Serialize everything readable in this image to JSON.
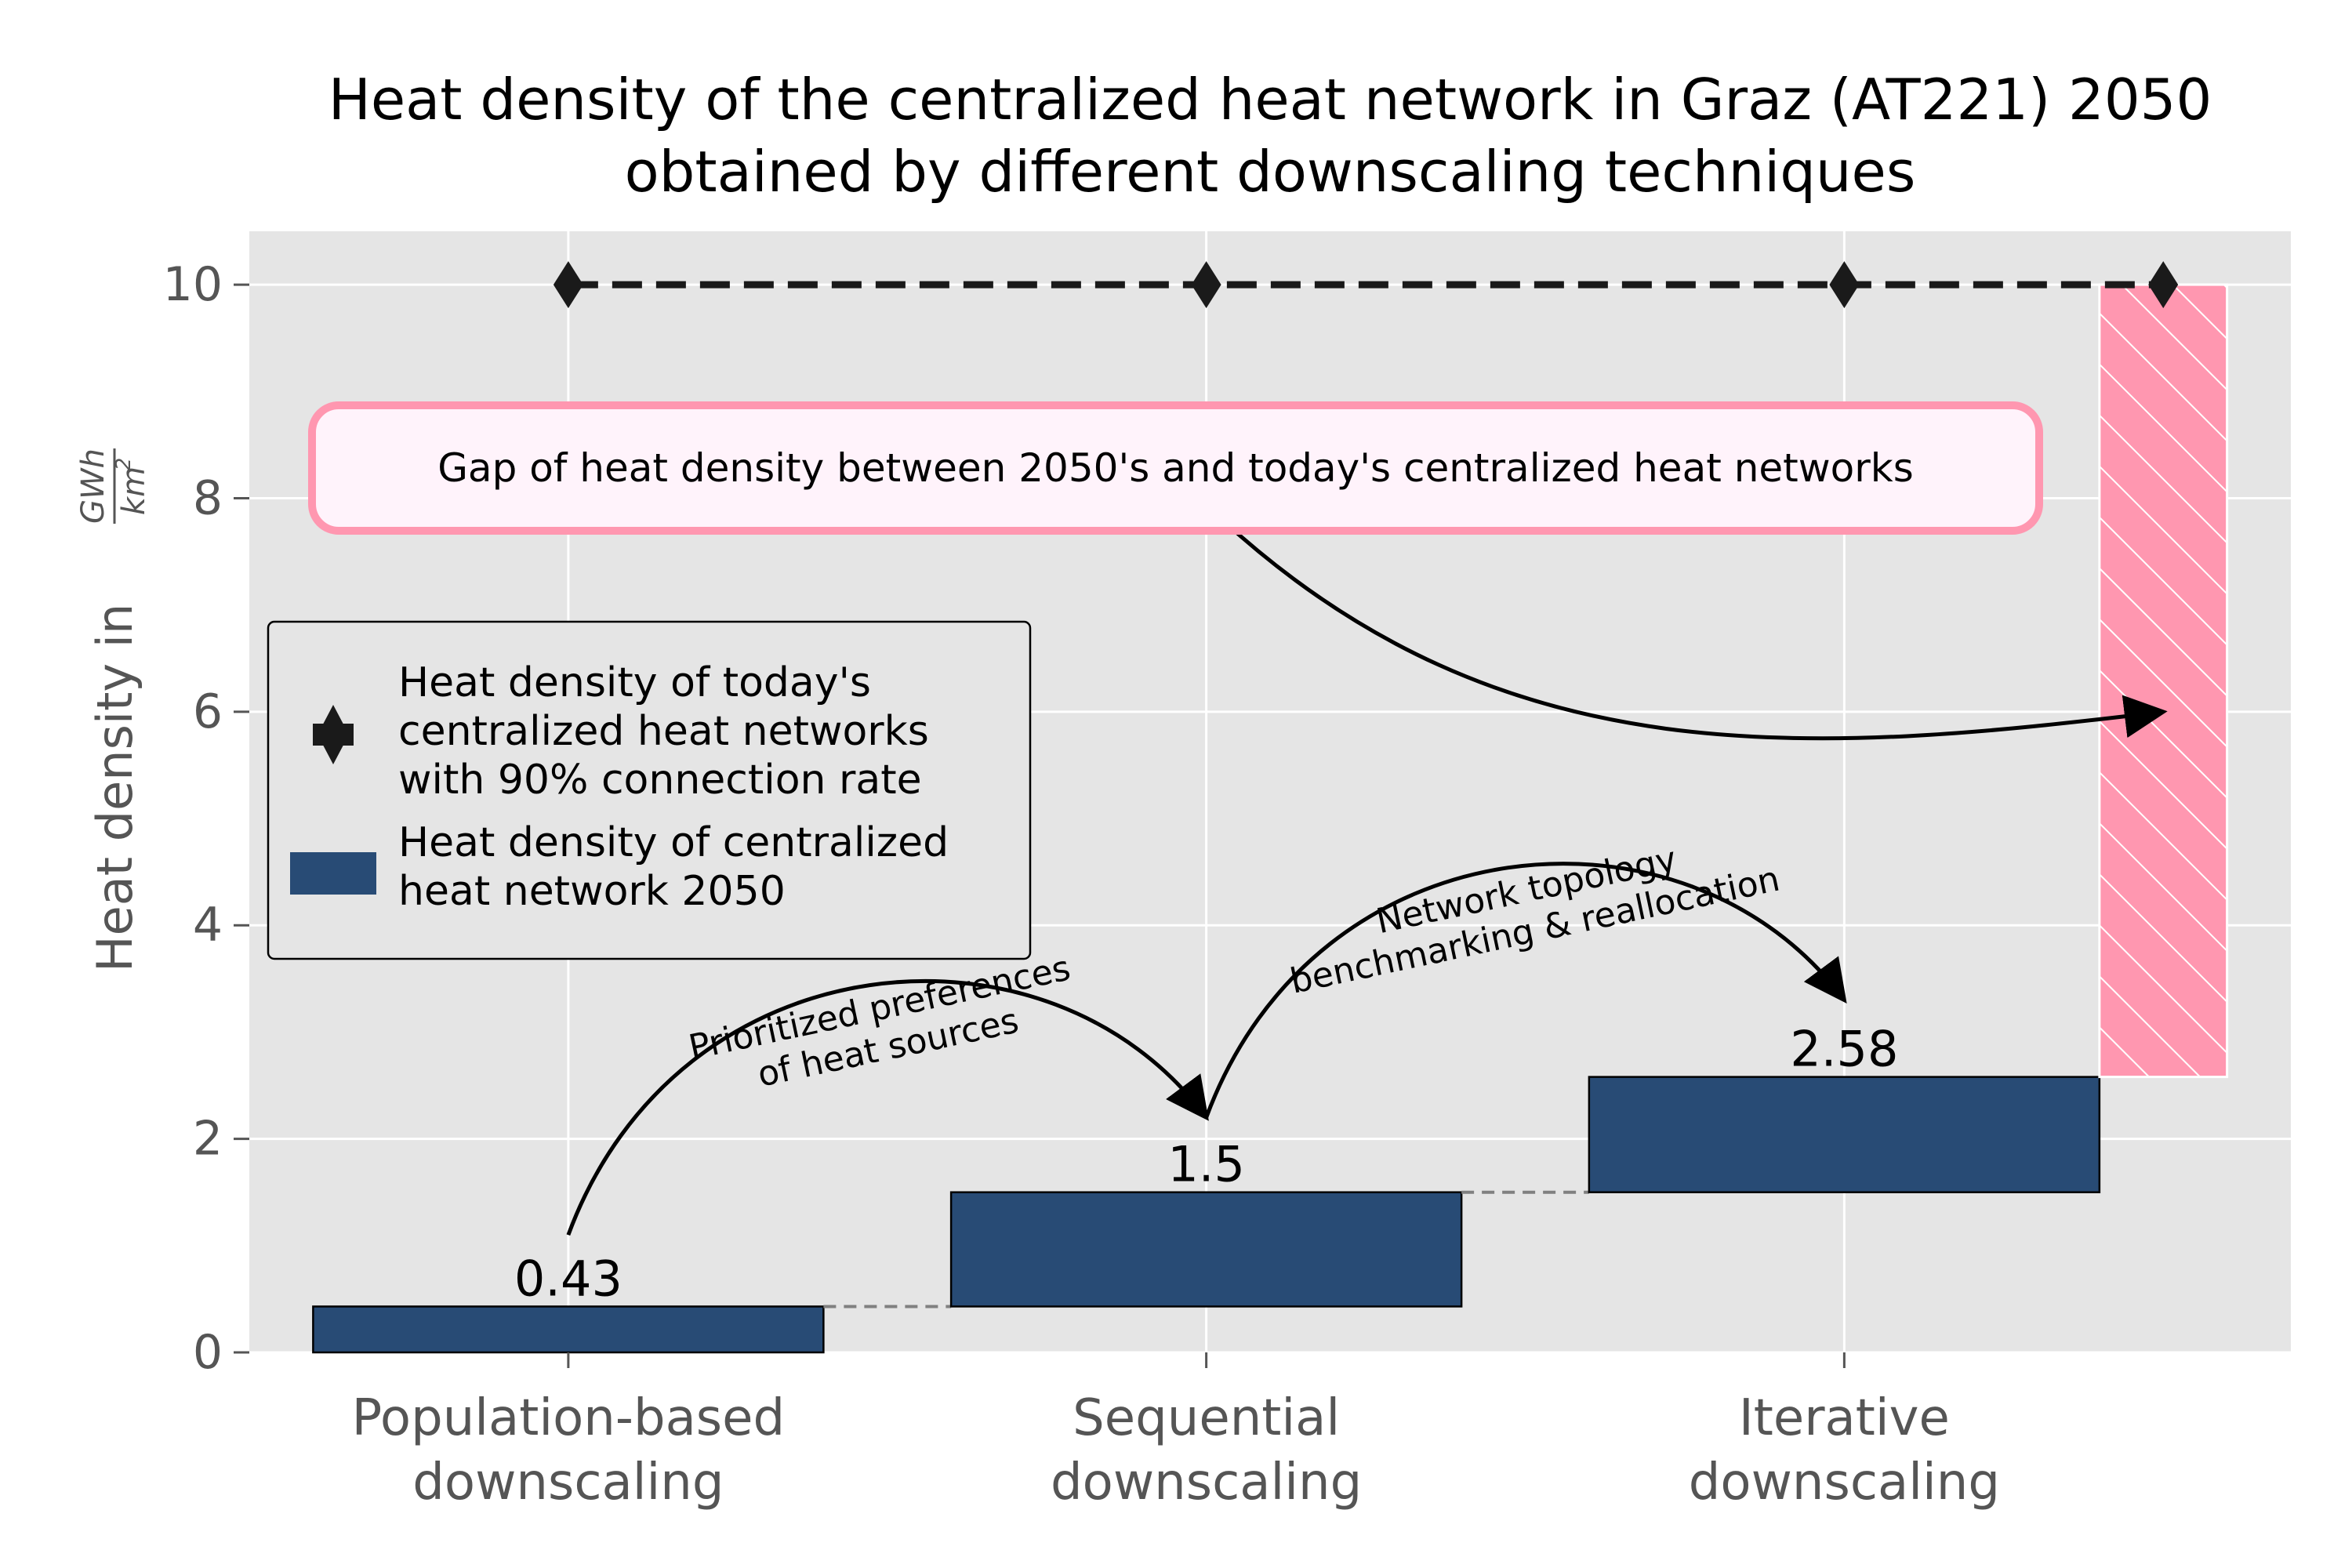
{
  "chart_data": {
    "type": "bar",
    "title": "Heat density of the centralized heat network in Graz (AT221) 2050\nobtained by different downscaling techniques",
    "ylabel": "Heat density in",
    "ylabel_unit_num": "GWh",
    "ylabel_unit_den": "km",
    "ylabel_unit_exp": "2",
    "ylim": [
      0,
      10.5
    ],
    "yticks": [
      0,
      2,
      4,
      6,
      8,
      10
    ],
    "grid": true,
    "categories": [
      "Population-based\ndownscaling",
      "Sequential\ndownscaling",
      "Iterative\ndownscaling"
    ],
    "bars": [
      {
        "bottom": 0,
        "top": 0.43,
        "label": "0.43"
      },
      {
        "bottom": 0.43,
        "top": 1.5,
        "label": "1.5"
      },
      {
        "bottom": 1.5,
        "top": 2.58,
        "label": "2.58"
      }
    ],
    "gap_bar": {
      "bottom": 2.58,
      "top": 10
    },
    "today_line": {
      "value": 10,
      "x": [
        0,
        1,
        2,
        2.5
      ]
    },
    "annotations": [
      {
        "id": "a1",
        "text": "Prioritized preferences\nof heat sources",
        "from": [
          0,
          1.1
        ],
        "to": [
          1,
          2.2
        ],
        "rotate": -12
      },
      {
        "id": "a2",
        "text": "Network topology\nbenchmarking & reallocation",
        "from": [
          1,
          2.2
        ],
        "to": [
          2,
          3.3
        ],
        "rotate": -12
      },
      {
        "id": "gap",
        "text": "Gap of heat density between 2050's and today's centralized heat networks",
        "from": [
          1,
          7.8
        ],
        "to": [
          2.5,
          6.0
        ],
        "rotate": 0
      }
    ],
    "legend": {
      "position": "center-left",
      "entries": [
        {
          "marker": "diamond-errorbar",
          "label": "Heat density of today's\ncentralized heat networks\nwith 90% connection rate"
        },
        {
          "marker": "bar",
          "label": "Heat density of centralized\nheat network 2050"
        }
      ]
    },
    "colors": {
      "bar": "#284b75",
      "gap": "#ff97b0",
      "background": "#e5e5e5",
      "grid": "#ffffff",
      "line": "#1a1a1a",
      "connector": "#808080",
      "callout_bg": "#fff3fb"
    }
  }
}
